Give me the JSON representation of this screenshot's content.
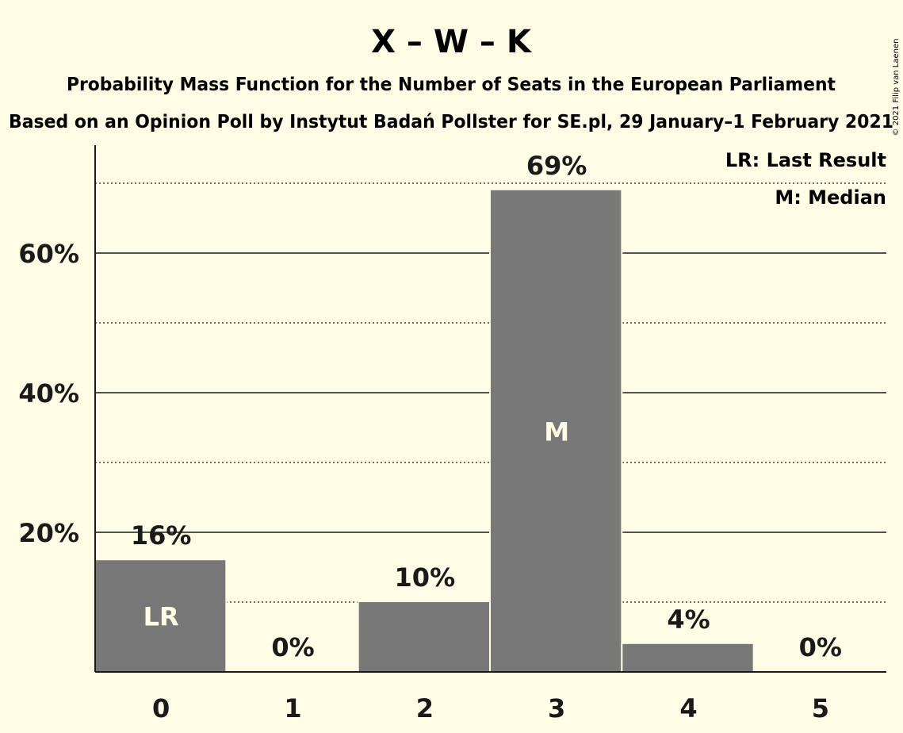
{
  "chart_data": {
    "type": "bar",
    "title": "X – W – K",
    "subtitle": "Probability Mass Function for the Number of Seats in the European Parliament",
    "subtitle2": "Based on an Opinion Poll by Instytut Badań Pollster for SE.pl, 29 January–1 February 2021",
    "categories": [
      "0",
      "1",
      "2",
      "3",
      "4",
      "5"
    ],
    "values": [
      16,
      0,
      10,
      69,
      4,
      0
    ],
    "value_labels": [
      "16%",
      "0%",
      "10%",
      "69%",
      "4%",
      "0%"
    ],
    "ylim": [
      0,
      75
    ],
    "y_ticks": [
      20,
      40,
      60
    ],
    "y_tick_labels": [
      "20%",
      "40%",
      "60%"
    ],
    "y_minor_ticks": [
      10,
      30,
      50,
      70
    ],
    "inner_labels": [
      {
        "category": "0",
        "text": "LR"
      },
      {
        "category": "3",
        "text": "M"
      }
    ],
    "legend": [
      "LR: Last Result",
      "M: Median"
    ],
    "legend_position": "top-right",
    "bar_color": "#787878",
    "background_color": "#fffde6",
    "copyright": "© 2021 Filip van Laenen"
  }
}
